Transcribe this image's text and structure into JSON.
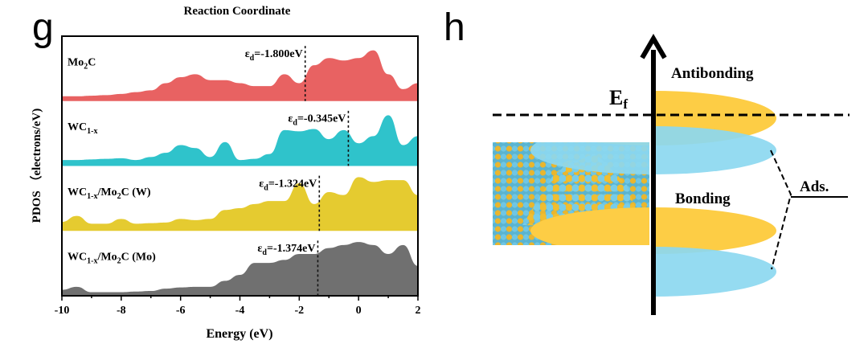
{
  "panel_g": {
    "letter": "g",
    "top_title": "Reaction Coordinate"
  },
  "panel_h": {
    "letter": "h",
    "fermi_label": "E",
    "fermi_sub": "f",
    "antibonding_label": "Antibonding",
    "bonding_label": "Bonding",
    "ads_label": "Ads.",
    "colors": {
      "metal_state": "#fdcd45",
      "adsorbate_state": "#8cd8f0",
      "atom_yellow": "#e9b62e",
      "atom_blue": "#6fc6e4"
    }
  },
  "chart_data": {
    "type": "area",
    "xlabel": "Energy (eV)",
    "ylabel": "PDOS （electrons/eV)",
    "xlim": [
      -10,
      2
    ],
    "xticks": [
      "-10",
      "-8",
      "-6",
      "-4",
      "-2",
      "0",
      "2"
    ],
    "x": [
      -10,
      -9.5,
      -9,
      -8.5,
      -8,
      -7.5,
      -7,
      -6.5,
      -6,
      -5.5,
      -5,
      -4.5,
      -4,
      -3.5,
      -3,
      -2.5,
      -2,
      -1.5,
      -1,
      -0.5,
      0,
      0.5,
      1,
      1.5,
      2
    ],
    "series": [
      {
        "name": "Mo2C",
        "name_main": "Mo",
        "name_sub": "2",
        "name_tail": "C",
        "name_tail2": "",
        "color": "#e86262",
        "ed_label": "εd=-1.800eV",
        "ed_eps": "ε",
        "ed_d": "d",
        "ed_value": "=-1.800eV",
        "ed": -1.8,
        "values": [
          0.08,
          0.08,
          0.09,
          0.1,
          0.12,
          0.15,
          0.18,
          0.3,
          0.4,
          0.45,
          0.35,
          0.35,
          0.3,
          0.25,
          0.25,
          0.45,
          0.3,
          0.6,
          0.72,
          0.68,
          0.72,
          0.85,
          0.45,
          0.2,
          0.3
        ]
      },
      {
        "name": "WC1-x",
        "name_main": "WC",
        "name_sub": "1-x",
        "name_tail": "",
        "name_tail2": "",
        "color": "#2fc3cb",
        "ed_label": "εd=-0.345eV",
        "ed_eps": "ε",
        "ed_d": "d",
        "ed_value": "=-0.345eV",
        "ed": -0.345,
        "values": [
          0.1,
          0.1,
          0.11,
          0.12,
          0.13,
          0.1,
          0.15,
          0.22,
          0.35,
          0.3,
          0.15,
          0.4,
          0.1,
          0.12,
          0.2,
          0.6,
          0.58,
          0.62,
          0.45,
          0.6,
          0.38,
          0.5,
          0.85,
          0.35,
          0.5
        ]
      },
      {
        "name": "WC1-x/Mo2C (W)",
        "name_main": "WC",
        "name_sub": "1-x",
        "name_tail": "/Mo",
        "name_tail2": "C  (W)",
        "color": "#e5cb30",
        "ed_label": "εd=-1.324eV",
        "ed_eps": "ε",
        "ed_d": "d",
        "ed_value": "=-1.324eV",
        "ed": -1.324,
        "values": [
          0.15,
          0.25,
          0.12,
          0.12,
          0.2,
          0.12,
          0.13,
          0.14,
          0.2,
          0.18,
          0.2,
          0.35,
          0.38,
          0.45,
          0.5,
          0.5,
          0.8,
          0.45,
          0.65,
          0.6,
          0.9,
          0.82,
          0.85,
          0.85,
          0.6
        ]
      },
      {
        "name": "WC1-x/Mo2C (Mo)",
        "name_main": "WC",
        "name_sub": "1-x",
        "name_tail": "/Mo",
        "name_tail2": "C  (Mo)",
        "color": "#707070",
        "ed_label": "εd=-1.374eV",
        "ed_eps": "ε",
        "ed_d": "d",
        "ed_value": "=-1.374eV",
        "ed": -1.374,
        "values": [
          0.1,
          0.15,
          0.06,
          0.06,
          0.06,
          0.07,
          0.08,
          0.12,
          0.14,
          0.15,
          0.15,
          0.25,
          0.35,
          0.55,
          0.55,
          0.6,
          0.7,
          0.7,
          0.8,
          0.85,
          0.9,
          0.85,
          0.7,
          0.85,
          0.5
        ]
      }
    ],
    "grid": false,
    "legend": "none"
  }
}
